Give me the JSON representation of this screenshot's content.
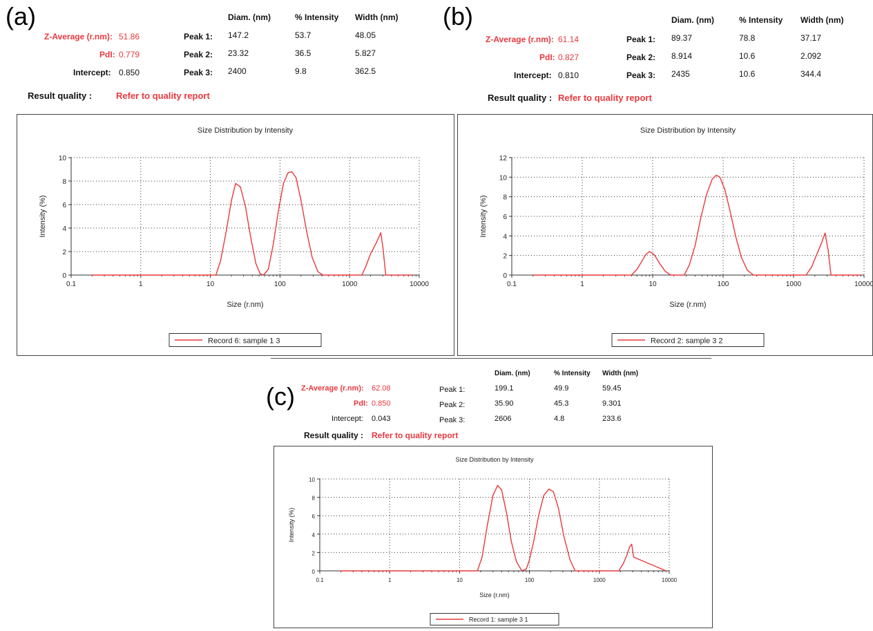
{
  "panels": [
    {
      "label": "(a)",
      "headers": {
        "diam": "Diam. (nm)",
        "intensity": "% Intensity",
        "width": "Width (nm)"
      },
      "zavg_label": "Z-Average (r.nm):",
      "zavg_value": "51.86",
      "pdi_label": "PdI:",
      "pdi_value": "0.779",
      "intercept_label": "Intercept:",
      "intercept_value": "0.850",
      "peaks": [
        {
          "name": "Peak 1:",
          "diam": "147.2",
          "intensity": "53.7",
          "width": "48.05"
        },
        {
          "name": "Peak 2:",
          "diam": "23.32",
          "intensity": "36.5",
          "width": "5.827"
        },
        {
          "name": "Peak 3:",
          "diam": "2400",
          "intensity": "9.8",
          "width": "362.5"
        }
      ],
      "rq_label": "Result quality :",
      "rq_value": "Refer to quality report"
    },
    {
      "label": "(b)",
      "headers": {
        "diam": "Diam. (nm)",
        "intensity": "% Intensity",
        "width": "Width (nm)"
      },
      "zavg_label": "Z-Average (r.nm):",
      "zavg_value": "61.14",
      "pdi_label": "PdI:",
      "pdi_value": "0.827",
      "intercept_label": "Intercept:",
      "intercept_value": "0.810",
      "peaks": [
        {
          "name": "Peak 1:",
          "diam": "89.37",
          "intensity": "78.8",
          "width": "37.17"
        },
        {
          "name": "Peak 2:",
          "diam": "8.914",
          "intensity": "10.6",
          "width": "2.092"
        },
        {
          "name": "Peak 3:",
          "diam": "2435",
          "intensity": "10.6",
          "width": "344.4"
        }
      ],
      "rq_label": "Result quality :",
      "rq_value": "Refer to quality report"
    },
    {
      "label": "(c)",
      "headers": {
        "diam": "Diam. (nm)",
        "intensity": "% Intensity",
        "width": "Width (nm)"
      },
      "zavg_label": "Z-Average (r.nm):",
      "zavg_value": "62.08",
      "pdi_label": "PdI:",
      "pdi_value": "0.850",
      "intercept_label": "Intercept:",
      "intercept_value": "0.043",
      "peaks": [
        {
          "name": "Peak 1:",
          "diam": "199.1",
          "intensity": "49.9",
          "width": "59.45"
        },
        {
          "name": "Peak 2:",
          "diam": "35.90",
          "intensity": "45.3",
          "width": "9.301"
        },
        {
          "name": "Peak 3:",
          "diam": "2606",
          "intensity": "4.8",
          "width": "233.6"
        }
      ],
      "rq_label": "Result quality :",
      "rq_value": "Refer to quality report"
    }
  ],
  "colors": {
    "accent_red": "#e8383d",
    "series_line": "#e8383d",
    "grid": "#333333"
  },
  "chart_data": [
    {
      "type": "line",
      "title": "Size Distribution by Intensity",
      "xlabel": "Size (r.nm)",
      "ylabel": "Intensity (%)",
      "xscale": "log",
      "xlim": [
        0.1,
        10000
      ],
      "ylim": [
        0,
        10
      ],
      "xticks": [
        "0.1",
        "1",
        "10",
        "100",
        "1000",
        "10000"
      ],
      "yticks": [
        "0",
        "2",
        "4",
        "6",
        "8",
        "10"
      ],
      "grid": true,
      "legend_position": "bottom",
      "series": [
        {
          "name": "Record 6: sample 1 3",
          "x": [
            0.2,
            12,
            14,
            17,
            20,
            23,
            27,
            32,
            38,
            45,
            52,
            58,
            68,
            80,
            95,
            112,
            130,
            147,
            170,
            200,
            240,
            290,
            350,
            410,
            470,
            1500,
            1700,
            2000,
            2400,
            2800,
            3000,
            3300,
            8000
          ],
          "y": [
            0,
            0,
            1.2,
            3.8,
            6.3,
            7.8,
            7.5,
            5.8,
            3.2,
            1.0,
            0.1,
            0,
            0.5,
            2.6,
            5.5,
            7.8,
            8.7,
            8.8,
            8.3,
            6.4,
            3.8,
            1.5,
            0.3,
            0,
            0,
            0,
            0.7,
            1.8,
            2.7,
            3.6,
            2.4,
            0,
            0
          ]
        }
      ]
    },
    {
      "type": "line",
      "title": "Size Distribution by Intensity",
      "xlabel": "Size (r.nm)",
      "ylabel": "Intensity (%)",
      "xscale": "log",
      "xlim": [
        0.1,
        10000
      ],
      "ylim": [
        0,
        12
      ],
      "xticks": [
        "0.1",
        "1",
        "10",
        "100",
        "1000",
        "10000"
      ],
      "yticks": [
        "0",
        "2",
        "4",
        "6",
        "8",
        "10",
        "12"
      ],
      "grid": true,
      "legend_position": "bottom",
      "series": [
        {
          "name": "Record 2: sample 3 2",
          "x": [
            0.2,
            5,
            6,
            7,
            8,
            9,
            10.5,
            12.5,
            15,
            18,
            28,
            33,
            40,
            48,
            58,
            70,
            80,
            90,
            105,
            125,
            150,
            180,
            220,
            270,
            1500,
            1800,
            2100,
            2500,
            2800,
            3100,
            3400,
            9000
          ],
          "y": [
            0,
            0,
            0.6,
            1.4,
            2.1,
            2.4,
            2.1,
            1.2,
            0.4,
            0,
            0,
            1.0,
            3.0,
            5.8,
            8.2,
            9.8,
            10.2,
            10.0,
            8.8,
            6.6,
            4.0,
            1.9,
            0.5,
            0,
            0,
            0.8,
            2.0,
            3.3,
            4.3,
            2.5,
            0,
            0
          ]
        }
      ]
    },
    {
      "type": "line",
      "title": "Size Distribution by Intensity",
      "xlabel": "Size (r.nm)",
      "ylabel": "Intensity (%)",
      "xscale": "log",
      "xlim": [
        0.1,
        10000
      ],
      "ylim": [
        0,
        10
      ],
      "xticks": [
        "0.1",
        "1",
        "10",
        "100",
        "1000",
        "10000"
      ],
      "yticks": [
        "0",
        "2",
        "4",
        "6",
        "8",
        "10"
      ],
      "grid": true,
      "legend_position": "bottom",
      "series": [
        {
          "name": "Record 1: sample 3 1",
          "x": [
            0.2,
            18,
            21,
            25,
            30,
            35,
            40,
            47,
            55,
            65,
            78,
            90,
            100,
            115,
            135,
            160,
            190,
            220,
            260,
            310,
            380,
            450,
            1900,
            2200,
            2500,
            2700,
            2900,
            3100,
            9000
          ],
          "y": [
            0,
            0,
            1.5,
            5.0,
            8.2,
            9.3,
            8.8,
            6.3,
            3.2,
            1.0,
            0,
            0.2,
            1.2,
            3.2,
            6.0,
            8.2,
            8.9,
            8.6,
            6.8,
            3.8,
            1.2,
            0,
            0,
            0.8,
            1.8,
            2.6,
            2.9,
            1.5,
            0
          ]
        }
      ]
    }
  ]
}
